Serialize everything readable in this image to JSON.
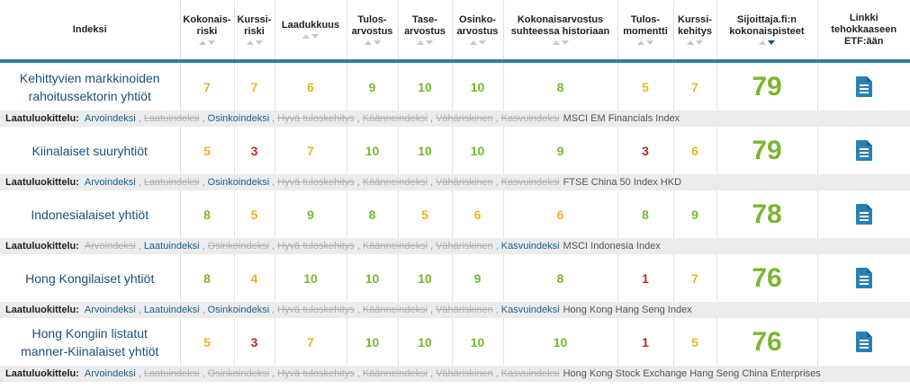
{
  "headers": [
    {
      "label": "Indeksi",
      "sortable": false
    },
    {
      "label": "Kokonais-riski",
      "sortable": true
    },
    {
      "label": "Kurssi-riski",
      "sortable": true
    },
    {
      "label": "Laadukkuus",
      "sortable": true
    },
    {
      "label": "Tulos-arvostus",
      "sortable": true
    },
    {
      "label": "Tase-arvostus",
      "sortable": true
    },
    {
      "label": "Osinko-arvostus",
      "sortable": true
    },
    {
      "label": "Kokonaisarvostus suhteessa historiaan",
      "sortable": true
    },
    {
      "label": "Tulos-momentti",
      "sortable": true
    },
    {
      "label": "Kurssi-kehitys",
      "sortable": true
    },
    {
      "label": "Sijoittaja.fi:n kokonaispisteet",
      "sortable": true,
      "active_sort": true
    },
    {
      "label": "Linkki tehokkaaseen ETF:ään",
      "sortable": false
    }
  ],
  "classification_label": "Laatuluokittelu:",
  "colors": {
    "green": "#7cb52e",
    "yellow": "#e8b520",
    "red": "#c0272d",
    "link": "#1f4e79",
    "accent_bar": "#2f7ea8"
  },
  "rows": [
    {
      "name_lines": [
        "Kehittyvien markkinoiden",
        "rahoitussektorin yhtiöt"
      ],
      "scores": [
        {
          "v": "7",
          "c": "yellow"
        },
        {
          "v": "7",
          "c": "yellow"
        },
        {
          "v": "6",
          "c": "yellow"
        },
        {
          "v": "9",
          "c": "green"
        },
        {
          "v": "10",
          "c": "green"
        },
        {
          "v": "10",
          "c": "green"
        },
        {
          "v": "8",
          "c": "green"
        },
        {
          "v": "5",
          "c": "yellow"
        },
        {
          "v": "7",
          "c": "yellow"
        }
      ],
      "total": "79",
      "tags": [
        {
          "t": "Arvoindeksi",
          "on": true
        },
        {
          "t": "Laatuindeksi",
          "on": false
        },
        {
          "t": "Osinkoindeksi",
          "on": true
        },
        {
          "t": "Hyvä tuloskehitys",
          "on": false
        },
        {
          "t": "Käänneindeksi",
          "on": false
        },
        {
          "t": "Vähäriskinen",
          "on": false
        },
        {
          "t": "Kasvuindeksi",
          "on": false
        }
      ],
      "index_name": "MSCI EM Financials Index"
    },
    {
      "name_lines": [
        "Kiinalaiset suuryhtiöt"
      ],
      "scores": [
        {
          "v": "5",
          "c": "yellow"
        },
        {
          "v": "3",
          "c": "red"
        },
        {
          "v": "7",
          "c": "yellow"
        },
        {
          "v": "10",
          "c": "green"
        },
        {
          "v": "10",
          "c": "green"
        },
        {
          "v": "10",
          "c": "green"
        },
        {
          "v": "9",
          "c": "green"
        },
        {
          "v": "3",
          "c": "red"
        },
        {
          "v": "6",
          "c": "yellow"
        }
      ],
      "total": "79",
      "tags": [
        {
          "t": "Arvoindeksi",
          "on": true
        },
        {
          "t": "Laatuindeksi",
          "on": false
        },
        {
          "t": "Osinkoindeksi",
          "on": true
        },
        {
          "t": "Hyvä tuloskehitys",
          "on": false
        },
        {
          "t": "Käänneindeksi",
          "on": false
        },
        {
          "t": "Vähäriskinen",
          "on": false
        },
        {
          "t": "Kasvuindeksi",
          "on": false
        }
      ],
      "index_name": "FTSE China 50 Index HKD"
    },
    {
      "name_lines": [
        "Indonesialaiset yhtiöt"
      ],
      "scores": [
        {
          "v": "8",
          "c": "green"
        },
        {
          "v": "5",
          "c": "yellow"
        },
        {
          "v": "9",
          "c": "green"
        },
        {
          "v": "8",
          "c": "green"
        },
        {
          "v": "5",
          "c": "yellow"
        },
        {
          "v": "6",
          "c": "yellow"
        },
        {
          "v": "6",
          "c": "yellow"
        },
        {
          "v": "8",
          "c": "green"
        },
        {
          "v": "9",
          "c": "green"
        }
      ],
      "total": "78",
      "tags": [
        {
          "t": "Arvoindeksi",
          "on": false
        },
        {
          "t": "Laatuindeksi",
          "on": true
        },
        {
          "t": "Osinkoindeksi",
          "on": false
        },
        {
          "t": "Hyvä tuloskehitys",
          "on": false
        },
        {
          "t": "Käänneindeksi",
          "on": false
        },
        {
          "t": "Vähäriskinen",
          "on": false
        },
        {
          "t": "Kasvuindeksi",
          "on": true
        }
      ],
      "index_name": "MSCI Indonesia Index"
    },
    {
      "name_lines": [
        "Hong Kongilaiset yhtiöt"
      ],
      "scores": [
        {
          "v": "8",
          "c": "green"
        },
        {
          "v": "4",
          "c": "yellow"
        },
        {
          "v": "10",
          "c": "green"
        },
        {
          "v": "10",
          "c": "green"
        },
        {
          "v": "10",
          "c": "green"
        },
        {
          "v": "9",
          "c": "green"
        },
        {
          "v": "8",
          "c": "green"
        },
        {
          "v": "1",
          "c": "red"
        },
        {
          "v": "7",
          "c": "yellow"
        }
      ],
      "total": "76",
      "tags": [
        {
          "t": "Arvoindeksi",
          "on": true
        },
        {
          "t": "Laatuindeksi",
          "on": true
        },
        {
          "t": "Osinkoindeksi",
          "on": true
        },
        {
          "t": "Hyvä tuloskehitys",
          "on": false
        },
        {
          "t": "Käänneindeksi",
          "on": false
        },
        {
          "t": "Vähäriskinen",
          "on": false
        },
        {
          "t": "Kasvuindeksi",
          "on": true
        }
      ],
      "index_name": "Hong Kong Hang Seng Index"
    },
    {
      "name_lines": [
        "Hong Kongiin listatut",
        "manner-Kiinalaiset yhtiöt"
      ],
      "scores": [
        {
          "v": "5",
          "c": "yellow"
        },
        {
          "v": "3",
          "c": "red"
        },
        {
          "v": "7",
          "c": "yellow"
        },
        {
          "v": "10",
          "c": "green"
        },
        {
          "v": "10",
          "c": "green"
        },
        {
          "v": "10",
          "c": "green"
        },
        {
          "v": "10",
          "c": "green"
        },
        {
          "v": "1",
          "c": "red"
        },
        {
          "v": "5",
          "c": "yellow"
        }
      ],
      "total": "76",
      "tags": [
        {
          "t": "Arvoindeksi",
          "on": true
        },
        {
          "t": "Laatuindeksi",
          "on": false
        },
        {
          "t": "Osinkoindeksi",
          "on": false
        },
        {
          "t": "Hyvä tuloskehitys",
          "on": false
        },
        {
          "t": "Käänneindeksi",
          "on": false
        },
        {
          "t": "Vähäriskinen",
          "on": false
        },
        {
          "t": "Kasvuindeksi",
          "on": false
        }
      ],
      "index_name": "Hong Kong Stock Exchange Hang Seng China Enterprises"
    }
  ]
}
